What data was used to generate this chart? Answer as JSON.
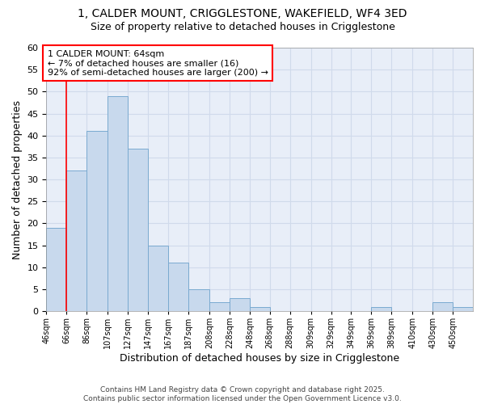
{
  "title_line1": "1, CALDER MOUNT, CRIGGLESTONE, WAKEFIELD, WF4 3ED",
  "title_line2": "Size of property relative to detached houses in Crigglestone",
  "xlabel": "Distribution of detached houses by size in Crigglestone",
  "ylabel": "Number of detached properties",
  "bin_labels": [
    "46sqm",
    "66sqm",
    "86sqm",
    "107sqm",
    "127sqm",
    "147sqm",
    "167sqm",
    "187sqm",
    "208sqm",
    "228sqm",
    "248sqm",
    "268sqm",
    "288sqm",
    "309sqm",
    "329sqm",
    "349sqm",
    "369sqm",
    "389sqm",
    "410sqm",
    "430sqm",
    "450sqm"
  ],
  "bin_edges": [
    46,
    66,
    86,
    107,
    127,
    147,
    167,
    187,
    208,
    228,
    248,
    268,
    288,
    309,
    329,
    349,
    369,
    389,
    410,
    430,
    450,
    470
  ],
  "counts": [
    19,
    32,
    41,
    49,
    37,
    15,
    11,
    5,
    2,
    3,
    1,
    0,
    0,
    0,
    0,
    0,
    1,
    0,
    0,
    2,
    1
  ],
  "bar_color": "#c8d9ed",
  "bar_edge_color": "#7aaad0",
  "grid_color": "#d0daeb",
  "background_color": "#ffffff",
  "plot_bg_color": "#e8eef8",
  "red_line_x": 66,
  "annotation_text": "1 CALDER MOUNT: 64sqm\n← 7% of detached houses are smaller (16)\n92% of semi-detached houses are larger (200) →",
  "ylim": [
    0,
    60
  ],
  "yticks": [
    0,
    5,
    10,
    15,
    20,
    25,
    30,
    35,
    40,
    45,
    50,
    55,
    60
  ],
  "footer_text": "Contains HM Land Registry data © Crown copyright and database right 2025.\nContains public sector information licensed under the Open Government Licence v3.0.",
  "title_fontsize": 10,
  "subtitle_fontsize": 9
}
